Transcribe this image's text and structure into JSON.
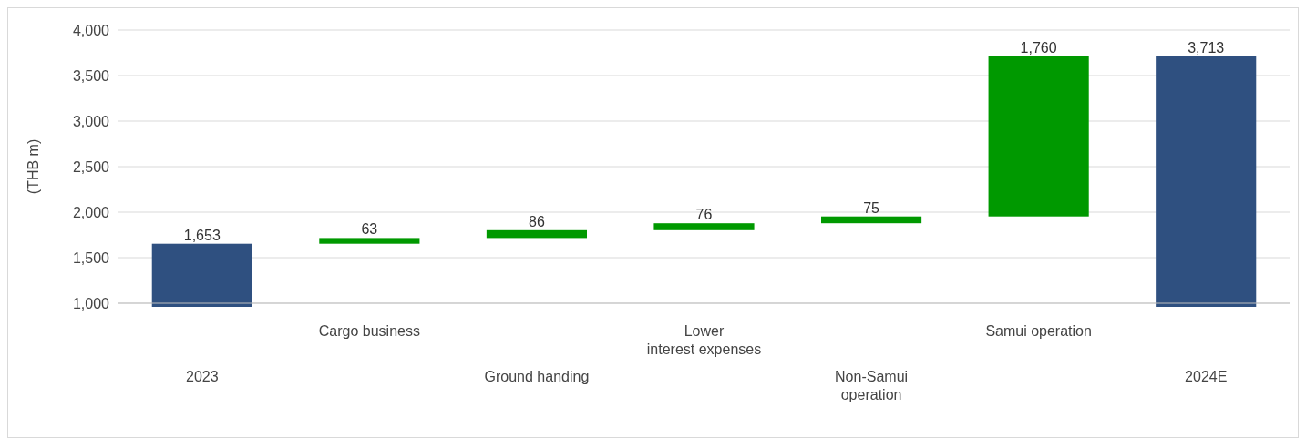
{
  "chart_data": {
    "type": "bar",
    "ylabel": "(THB m)",
    "categories": [
      "2023",
      "Cargo business",
      "Ground handing",
      "Lower interest expenses",
      "Non-Samui operation",
      "Samui operation",
      "2024E"
    ],
    "values": [
      1653,
      63,
      86,
      76,
      75,
      1760,
      3713
    ],
    "base": [
      null,
      1653,
      1716,
      1802,
      1878,
      1953,
      null
    ],
    "colors": [
      "#2f5080",
      "#009900",
      "#009900",
      "#009900",
      "#009900",
      "#009900",
      "#2f5080"
    ],
    "ylim": [
      1000,
      4000
    ],
    "yticks": [
      {
        "value": 1000,
        "label": "1,000"
      },
      {
        "value": 1500,
        "label": "1,500"
      },
      {
        "value": 2000,
        "label": "2,000"
      },
      {
        "value": 2500,
        "label": "2,500"
      },
      {
        "value": 3000,
        "label": "3,000"
      },
      {
        "value": 3500,
        "label": "3,500"
      },
      {
        "value": 4000,
        "label": "4,000"
      }
    ],
    "value_labels": [
      "1,653",
      "63",
      "86",
      "76",
      "75",
      "1,760",
      "3,713"
    ],
    "grid": "y"
  }
}
